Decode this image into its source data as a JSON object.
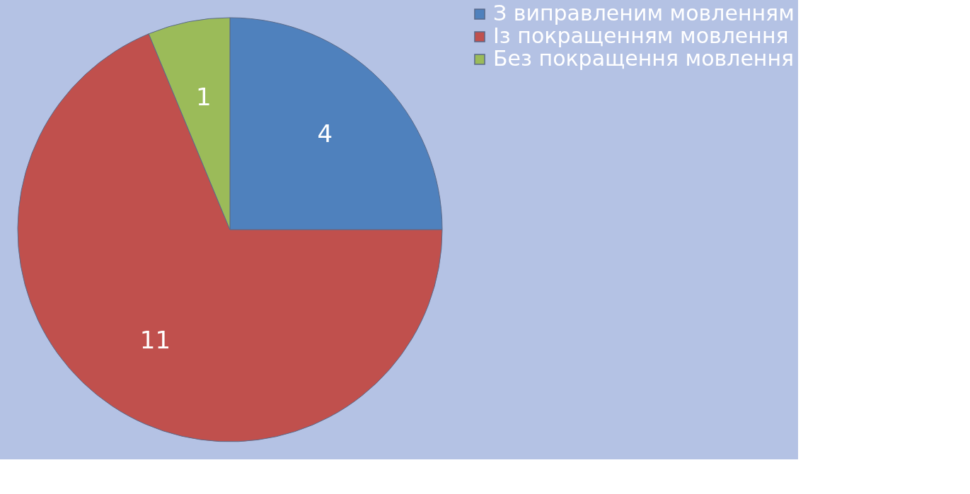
{
  "chart_data": {
    "type": "pie",
    "categories": [
      "З виправленим мовленням",
      "Із покращенням мовлення",
      "Без покращення мовлення"
    ],
    "values": [
      4,
      11,
      1
    ],
    "colors": [
      "#4f81bd",
      "#c0504d",
      "#9bbb59"
    ],
    "data_labels": true,
    "legend": "right"
  }
}
